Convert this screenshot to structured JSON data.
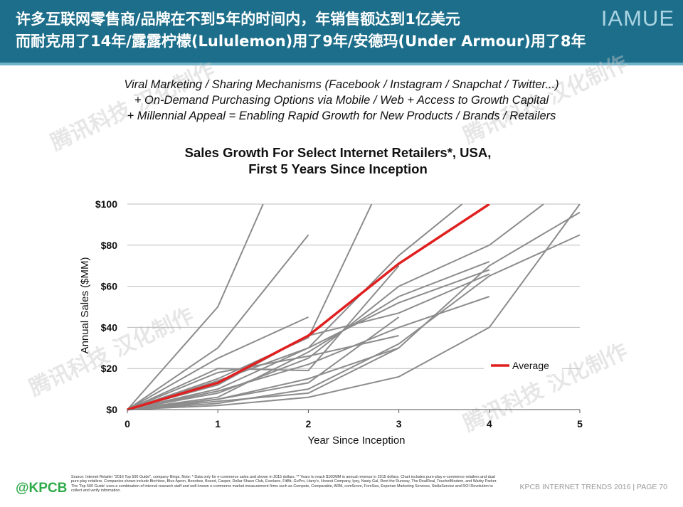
{
  "header": {
    "title_line1": "许多互联网零售商/品牌在不到5年的时间内，年销售额达到1亿美元",
    "title_line2": "而耐克用了14年/露露柠檬(Lululemon)用了9年/安德玛(Under Armour)用了8年",
    "brand": "IAMUE"
  },
  "tagline": {
    "line1": "Viral Marketing / Sharing Mechanisms (Facebook / Instagram / Snapchat / Twitter...)",
    "line2": "+ On-Demand Purchasing Options via Mobile / Web + Access to Growth Capital",
    "line3": "+ Millennial Appeal = Enabling Rapid Growth for New Products / Brands / Retailers"
  },
  "watermark": "腾讯科技 汉化制作",
  "source_text": "Source: Internet Retailer \"2016 Top 500 Guide\", company filings. Note: * Data only for e-commerce sales and shown in 2015 dollars. ** Years to reach $100MM in annual revenue in 2015 dollars. Chart includes pure-play e-commerce retailers and dual pure-play retailers. Companies shown include Birchbox, Blue Apron, Bonobos, Boxed, Casper, Dollar Shave Club, Everlane, FitBit, GoPro, Harry's, Honest Company, Ipsy, Nasty Gal, Rent the Runway, The RealReal, TouchofModern, and Warby Parker. The 'Top 500 Guide' uses a combination of internal research staff and well-known e-commerce market measurement firms such as Compete, Comparable, ARM, comScore, ForeSee, Experian Marketing Services, StellaService and ROI Revolution to collect and verify information.",
  "footer": {
    "logo": "@KPCB",
    "text": "KPCB INTERNET TRENDS 2016  |  PAGE 70"
  },
  "colors": {
    "header": "#1c6e8a",
    "company_line": "#8c8c8c",
    "average_line": "#e02020"
  },
  "chart_data": {
    "type": "line",
    "title": "Sales Growth For Select Internet Retailers*, USA,",
    "subtitle": "First 5 Years Since Inception",
    "xlabel": "Year Since Inception",
    "ylabel": "Annual Sales ($MM)",
    "xlim": [
      0,
      5
    ],
    "ylim": [
      0,
      100
    ],
    "x_ticks": [
      "0",
      "1",
      "2",
      "3",
      "4",
      "5"
    ],
    "y_ticks": [
      "$0",
      "$20",
      "$40",
      "$60",
      "$80",
      "$100"
    ],
    "legend": "Average",
    "legend_position": "right",
    "series_color": "#8c8c8c",
    "average_color": "#e02020",
    "series": [
      {
        "x": [
          0,
          1,
          1.5
        ],
        "y": [
          0,
          50,
          100
        ]
      },
      {
        "x": [
          0,
          1,
          2
        ],
        "y": [
          0,
          30,
          85
        ]
      },
      {
        "x": [
          0,
          1,
          2
        ],
        "y": [
          0,
          25,
          45
        ]
      },
      {
        "x": [
          0,
          1,
          2,
          2.7
        ],
        "y": [
          0,
          15,
          35,
          100
        ]
      },
      {
        "x": [
          0,
          1,
          2,
          3,
          3.7
        ],
        "y": [
          0,
          10,
          30,
          75,
          100
        ]
      },
      {
        "x": [
          0,
          1,
          2,
          3,
          4,
          4.6
        ],
        "y": [
          0,
          8,
          25,
          60,
          80,
          100
        ]
      },
      {
        "x": [
          0,
          1,
          2,
          3,
          4,
          5
        ],
        "y": [
          0,
          5,
          15,
          30,
          70,
          96
        ]
      },
      {
        "x": [
          0,
          1,
          2,
          3,
          4,
          5
        ],
        "y": [
          0,
          3,
          10,
          32,
          65,
          85
        ]
      },
      {
        "x": [
          0,
          1,
          2,
          3,
          4,
          5
        ],
        "y": [
          0,
          2,
          6,
          16,
          40,
          100
        ]
      },
      {
        "x": [
          0,
          1,
          2,
          3,
          4
        ],
        "y": [
          0,
          6,
          28,
          55,
          72
        ]
      },
      {
        "x": [
          0,
          1,
          2,
          3,
          4
        ],
        "y": [
          0,
          12,
          36,
          47,
          66
        ]
      },
      {
        "x": [
          0,
          1,
          2,
          3
        ],
        "y": [
          0,
          20,
          19,
          70
        ]
      },
      {
        "x": [
          0,
          1,
          2,
          3
        ],
        "y": [
          0,
          5,
          13,
          45
        ]
      },
      {
        "x": [
          0,
          1,
          2,
          3,
          4
        ],
        "y": [
          0,
          9,
          22,
          40,
          55
        ]
      },
      {
        "x": [
          0,
          1,
          2,
          3,
          4
        ],
        "y": [
          0,
          14,
          30,
          52,
          68
        ]
      },
      {
        "x": [
          0,
          1,
          2,
          3
        ],
        "y": [
          0,
          4,
          8,
          30
        ]
      },
      {
        "x": [
          0,
          1,
          2,
          3
        ],
        "y": [
          0,
          18,
          26,
          36
        ]
      }
    ],
    "average": {
      "name": "Average",
      "x": [
        0,
        1,
        2,
        3,
        4
      ],
      "y": [
        0,
        13,
        36,
        71,
        100
      ]
    }
  }
}
